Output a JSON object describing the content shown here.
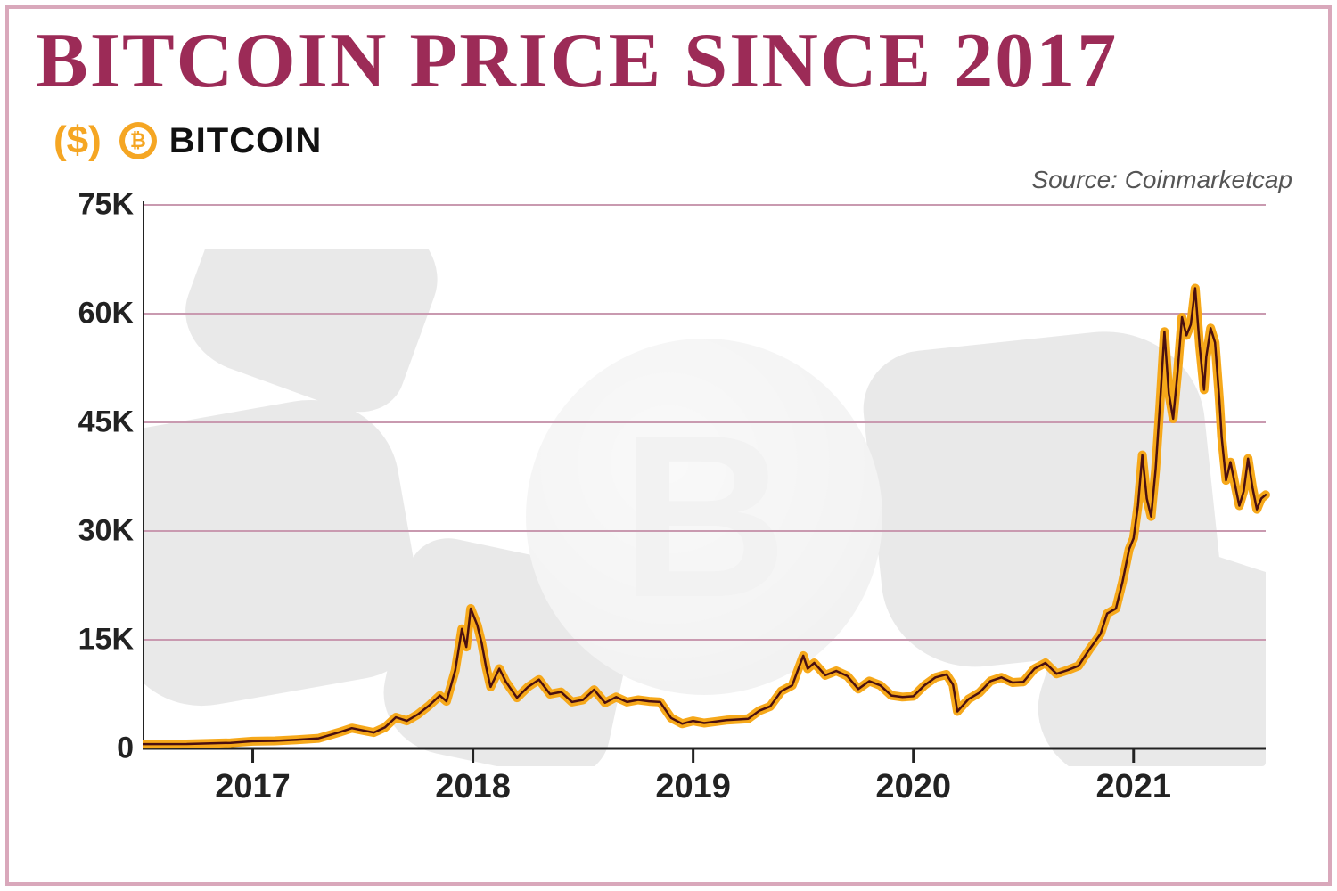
{
  "title": "BITCOIN PRICE SINCE 2017",
  "title_color": "#9c2b57",
  "legend": {
    "dollar": "($)",
    "dollar_color": "#f5a623",
    "badge_bg": "#f5a623",
    "badge_glyph": "₿",
    "badge_glyph_color": "#f5a623",
    "label": "BITCOIN",
    "label_color": "#111111"
  },
  "source": "Source: Coinmarketcap",
  "source_color": "#555555",
  "frame_color": "#d9a8bb",
  "chart": {
    "type": "line",
    "background_color": "#ffffff",
    "grid_color": "#c99ab0",
    "axis_color": "#222222",
    "tick_color": "#222222",
    "line_stroke": "#4a1010",
    "line_outer_glow": "#f6a81a",
    "line_width_inner": 2.5,
    "line_width_outer": 10,
    "ylim": [
      0,
      75000
    ],
    "yticks": [
      0,
      15000,
      30000,
      45000,
      60000,
      75000
    ],
    "ytick_labels": [
      "0",
      "15K",
      "30K",
      "45K",
      "60K",
      "75K"
    ],
    "ylabel_fontsize": 34,
    "xlim": [
      2016.5,
      2021.6
    ],
    "xticks": [
      2017,
      2018,
      2019,
      2020,
      2021
    ],
    "xtick_labels": [
      "2017",
      "2018",
      "2019",
      "2020",
      "2021"
    ],
    "xlabel_fontsize": 38,
    "series": [
      {
        "x": 2016.5,
        "y": 600
      },
      {
        "x": 2016.7,
        "y": 620
      },
      {
        "x": 2016.9,
        "y": 780
      },
      {
        "x": 2017.0,
        "y": 1000
      },
      {
        "x": 2017.1,
        "y": 1050
      },
      {
        "x": 2017.2,
        "y": 1200
      },
      {
        "x": 2017.3,
        "y": 1400
      },
      {
        "x": 2017.4,
        "y": 2300
      },
      {
        "x": 2017.45,
        "y": 2800
      },
      {
        "x": 2017.5,
        "y": 2500
      },
      {
        "x": 2017.55,
        "y": 2200
      },
      {
        "x": 2017.6,
        "y": 2900
      },
      {
        "x": 2017.65,
        "y": 4300
      },
      {
        "x": 2017.7,
        "y": 3800
      },
      {
        "x": 2017.75,
        "y": 4700
      },
      {
        "x": 2017.8,
        "y": 5900
      },
      {
        "x": 2017.85,
        "y": 7300
      },
      {
        "x": 2017.88,
        "y": 6500
      },
      {
        "x": 2017.92,
        "y": 10800
      },
      {
        "x": 2017.95,
        "y": 16500
      },
      {
        "x": 2017.97,
        "y": 14000
      },
      {
        "x": 2017.99,
        "y": 19300
      },
      {
        "x": 2018.02,
        "y": 17000
      },
      {
        "x": 2018.04,
        "y": 14500
      },
      {
        "x": 2018.06,
        "y": 11200
      },
      {
        "x": 2018.08,
        "y": 8500
      },
      {
        "x": 2018.12,
        "y": 11000
      },
      {
        "x": 2018.15,
        "y": 9200
      },
      {
        "x": 2018.2,
        "y": 7000
      },
      {
        "x": 2018.25,
        "y": 8500
      },
      {
        "x": 2018.3,
        "y": 9500
      },
      {
        "x": 2018.35,
        "y": 7500
      },
      {
        "x": 2018.4,
        "y": 7800
      },
      {
        "x": 2018.45,
        "y": 6400
      },
      {
        "x": 2018.5,
        "y": 6700
      },
      {
        "x": 2018.55,
        "y": 8100
      },
      {
        "x": 2018.6,
        "y": 6300
      },
      {
        "x": 2018.65,
        "y": 7100
      },
      {
        "x": 2018.7,
        "y": 6400
      },
      {
        "x": 2018.75,
        "y": 6700
      },
      {
        "x": 2018.8,
        "y": 6500
      },
      {
        "x": 2018.85,
        "y": 6400
      },
      {
        "x": 2018.9,
        "y": 4200
      },
      {
        "x": 2018.95,
        "y": 3400
      },
      {
        "x": 2019.0,
        "y": 3800
      },
      {
        "x": 2019.05,
        "y": 3500
      },
      {
        "x": 2019.1,
        "y": 3700
      },
      {
        "x": 2019.15,
        "y": 3900
      },
      {
        "x": 2019.2,
        "y": 4000
      },
      {
        "x": 2019.25,
        "y": 4100
      },
      {
        "x": 2019.3,
        "y": 5200
      },
      {
        "x": 2019.35,
        "y": 5800
      },
      {
        "x": 2019.4,
        "y": 7900
      },
      {
        "x": 2019.45,
        "y": 8700
      },
      {
        "x": 2019.5,
        "y": 12800
      },
      {
        "x": 2019.52,
        "y": 11000
      },
      {
        "x": 2019.55,
        "y": 11800
      },
      {
        "x": 2019.6,
        "y": 10100
      },
      {
        "x": 2019.65,
        "y": 10700
      },
      {
        "x": 2019.7,
        "y": 10000
      },
      {
        "x": 2019.75,
        "y": 8200
      },
      {
        "x": 2019.8,
        "y": 9300
      },
      {
        "x": 2019.85,
        "y": 8700
      },
      {
        "x": 2019.9,
        "y": 7300
      },
      {
        "x": 2019.95,
        "y": 7100
      },
      {
        "x": 2020.0,
        "y": 7200
      },
      {
        "x": 2020.05,
        "y": 8700
      },
      {
        "x": 2020.1,
        "y": 9800
      },
      {
        "x": 2020.15,
        "y": 10200
      },
      {
        "x": 2020.18,
        "y": 8800
      },
      {
        "x": 2020.2,
        "y": 5100
      },
      {
        "x": 2020.25,
        "y": 6800
      },
      {
        "x": 2020.3,
        "y": 7700
      },
      {
        "x": 2020.35,
        "y": 9300
      },
      {
        "x": 2020.4,
        "y": 9800
      },
      {
        "x": 2020.45,
        "y": 9100
      },
      {
        "x": 2020.5,
        "y": 9200
      },
      {
        "x": 2020.55,
        "y": 11000
      },
      {
        "x": 2020.6,
        "y": 11800
      },
      {
        "x": 2020.65,
        "y": 10300
      },
      {
        "x": 2020.7,
        "y": 10800
      },
      {
        "x": 2020.75,
        "y": 11400
      },
      {
        "x": 2020.8,
        "y": 13700
      },
      {
        "x": 2020.85,
        "y": 15800
      },
      {
        "x": 2020.88,
        "y": 18600
      },
      {
        "x": 2020.92,
        "y": 19300
      },
      {
        "x": 2020.95,
        "y": 23000
      },
      {
        "x": 2020.98,
        "y": 27500
      },
      {
        "x": 2021.0,
        "y": 29000
      },
      {
        "x": 2021.02,
        "y": 33500
      },
      {
        "x": 2021.04,
        "y": 40500
      },
      {
        "x": 2021.06,
        "y": 34500
      },
      {
        "x": 2021.08,
        "y": 32000
      },
      {
        "x": 2021.1,
        "y": 38500
      },
      {
        "x": 2021.12,
        "y": 47500
      },
      {
        "x": 2021.14,
        "y": 57500
      },
      {
        "x": 2021.16,
        "y": 49000
      },
      {
        "x": 2021.18,
        "y": 45500
      },
      {
        "x": 2021.2,
        "y": 52000
      },
      {
        "x": 2021.22,
        "y": 59500
      },
      {
        "x": 2021.24,
        "y": 57000
      },
      {
        "x": 2021.26,
        "y": 58500
      },
      {
        "x": 2021.28,
        "y": 63500
      },
      {
        "x": 2021.3,
        "y": 55500
      },
      {
        "x": 2021.32,
        "y": 49500
      },
      {
        "x": 2021.33,
        "y": 54000
      },
      {
        "x": 2021.35,
        "y": 58000
      },
      {
        "x": 2021.37,
        "y": 56000
      },
      {
        "x": 2021.39,
        "y": 48000
      },
      {
        "x": 2021.4,
        "y": 43000
      },
      {
        "x": 2021.42,
        "y": 37000
      },
      {
        "x": 2021.44,
        "y": 39500
      },
      {
        "x": 2021.46,
        "y": 36500
      },
      {
        "x": 2021.48,
        "y": 33500
      },
      {
        "x": 2021.5,
        "y": 35500
      },
      {
        "x": 2021.52,
        "y": 40000
      },
      {
        "x": 2021.54,
        "y": 36000
      },
      {
        "x": 2021.56,
        "y": 33000
      },
      {
        "x": 2021.58,
        "y": 34500
      },
      {
        "x": 2021.6,
        "y": 35000
      }
    ]
  }
}
